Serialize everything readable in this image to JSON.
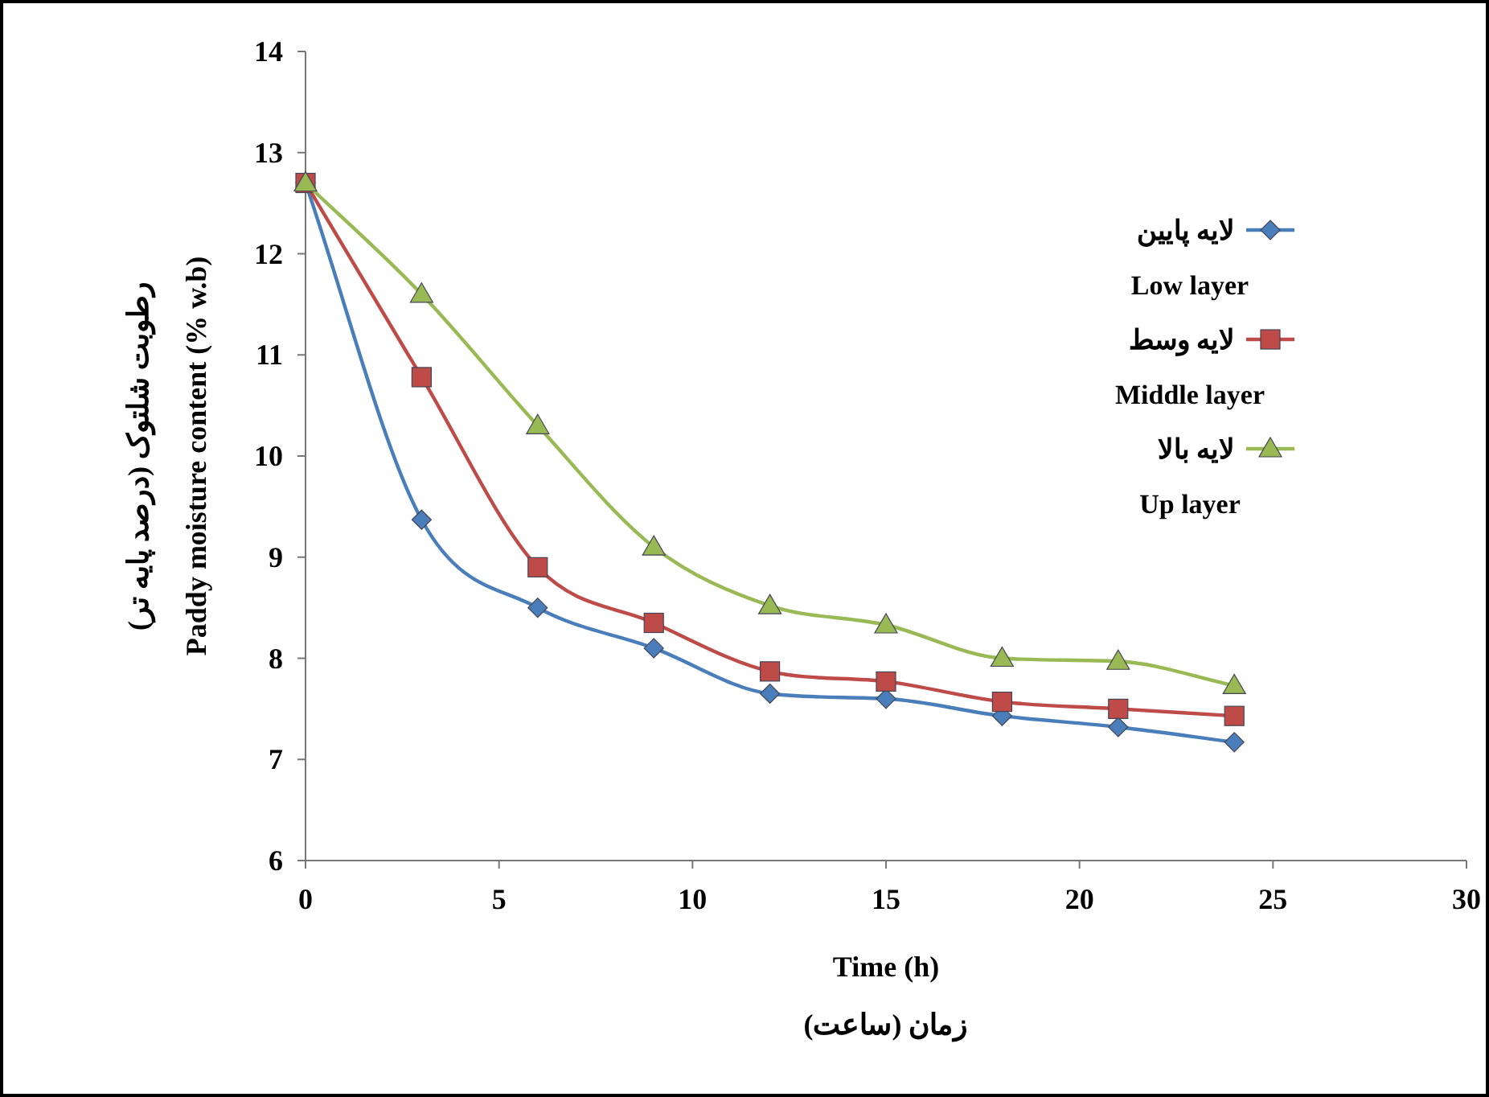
{
  "chart_data": {
    "type": "line",
    "xlabel": "Time (h)\nزمان (ساعت)",
    "ylabel": "رطوبت شلتوک (درصد پایه تر)\nPaddy moisture content (% w.b)",
    "x": [
      0,
      3,
      6,
      9,
      12,
      15,
      18,
      21,
      24
    ],
    "series": [
      {
        "name": "لایه پایین\nLow layer",
        "color": "#4a7ebb",
        "marker": "diamond",
        "values": [
          12.7,
          9.37,
          8.5,
          8.1,
          7.65,
          7.6,
          7.43,
          7.32,
          7.17
        ]
      },
      {
        "name": "لایه وسط\nMiddle layer",
        "color": "#be4b48",
        "marker": "square",
        "values": [
          12.7,
          10.78,
          8.9,
          8.35,
          7.87,
          7.77,
          7.57,
          7.5,
          7.43
        ]
      },
      {
        "name": "لایه بالا\nUp layer",
        "color": "#98b954",
        "marker": "triangle",
        "values": [
          12.7,
          11.6,
          10.3,
          9.1,
          8.52,
          8.33,
          8.0,
          7.97,
          7.73
        ]
      }
    ],
    "xlim": [
      0,
      30
    ],
    "xticks": [
      0,
      5,
      10,
      15,
      20,
      25,
      30
    ],
    "ylim": [
      6,
      14
    ],
    "yticks": [
      6,
      7,
      8,
      9,
      10,
      11,
      12,
      13,
      14
    ],
    "grid": false,
    "legend": "right",
    "line_style": "solid"
  }
}
